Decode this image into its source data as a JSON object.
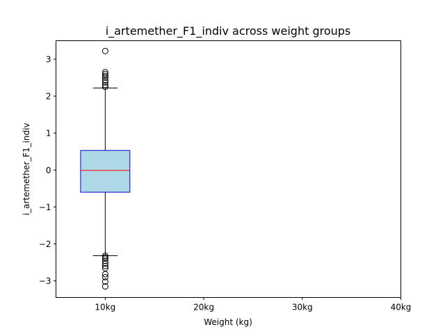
{
  "chart_data": {
    "type": "box",
    "title": "i_artemether_F1_indiv across weight groups",
    "xlabel": "Weight (kg)",
    "ylabel": "i_artemether_F1_indiv",
    "categories": [
      "10kg",
      "20kg",
      "30kg",
      "40kg"
    ],
    "xlim": [
      0.5,
      4.0
    ],
    "ylim": [
      -3.45,
      3.5
    ],
    "yticks": [
      -3,
      -2,
      -1,
      0,
      1,
      2,
      3
    ],
    "ytick_labels": [
      "−3",
      "−2",
      "−1",
      "0",
      "1",
      "2",
      "3"
    ],
    "boxes": [
      {
        "category": "10kg",
        "whisker_low": -2.32,
        "q1": -0.6,
        "median": -0.01,
        "q3": 0.53,
        "whisker_high": 2.22,
        "outliers": [
          3.22,
          2.65,
          2.6,
          2.55,
          2.5,
          2.43,
          2.37,
          2.3,
          2.25,
          -2.32,
          -2.36,
          -2.4,
          -2.46,
          -2.53,
          -2.6,
          -2.66,
          -2.82,
          -2.9,
          -3.02,
          -3.15
        ]
      },
      {
        "category": "20kg"
      },
      {
        "category": "30kg"
      },
      {
        "category": "40kg"
      }
    ],
    "colors": {
      "box_fill": "#add8e6",
      "box_edge": "#0000cd",
      "median": "#ff0000",
      "whisker": "#000000"
    },
    "grid": false
  }
}
